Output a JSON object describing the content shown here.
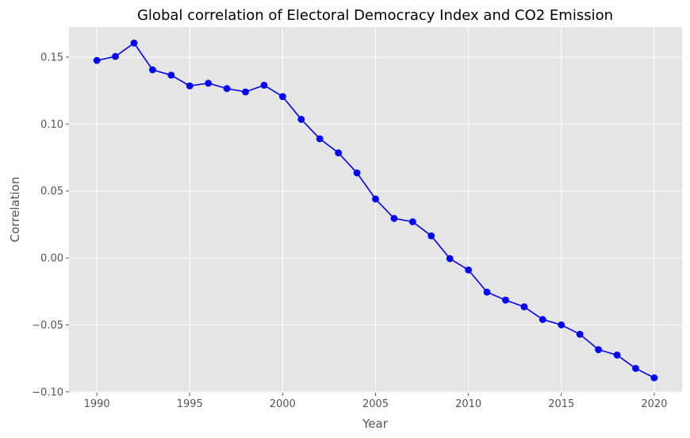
{
  "chart_data": {
    "type": "line",
    "title": "Global correlation of Electoral Democracy Index and CO2 Emission",
    "xlabel": "Year",
    "ylabel": "Correlation",
    "xlim": [
      1988.5,
      2021.5
    ],
    "ylim": [
      -0.1007,
      0.1725
    ],
    "xticks": [
      1990,
      1995,
      2000,
      2005,
      2010,
      2015,
      2020
    ],
    "xtick_labels": [
      "1990",
      "1995",
      "2000",
      "2005",
      "2010",
      "2015",
      "2020"
    ],
    "yticks": [
      -0.1,
      -0.05,
      0.0,
      0.05,
      0.1,
      0.15
    ],
    "ytick_labels": [
      "−0.10",
      "−0.05",
      "0.00",
      "0.05",
      "0.10",
      "0.15"
    ],
    "grid": true,
    "background": "#e5e5e5",
    "series": [
      {
        "color": "#0000ff",
        "marker": "circle",
        "x": [
          1990,
          1991,
          1992,
          1993,
          1994,
          1995,
          1996,
          1997,
          1998,
          1999,
          2000,
          2001,
          2002,
          2003,
          2004,
          2005,
          2006,
          2007,
          2008,
          2009,
          2010,
          2011,
          2012,
          2013,
          2014,
          2015,
          2016,
          2017,
          2018,
          2019,
          2020
        ],
        "y": [
          0.1475,
          0.1505,
          0.1605,
          0.1405,
          0.1365,
          0.1285,
          0.1305,
          0.1265,
          0.124,
          0.129,
          0.1205,
          0.1035,
          0.089,
          0.0785,
          0.0635,
          0.044,
          0.0295,
          0.027,
          0.0165,
          -0.0005,
          -0.009,
          -0.0255,
          -0.0315,
          -0.0365,
          -0.046,
          -0.05,
          -0.057,
          -0.0685,
          -0.0725,
          -0.0825,
          -0.0895
        ]
      }
    ]
  }
}
